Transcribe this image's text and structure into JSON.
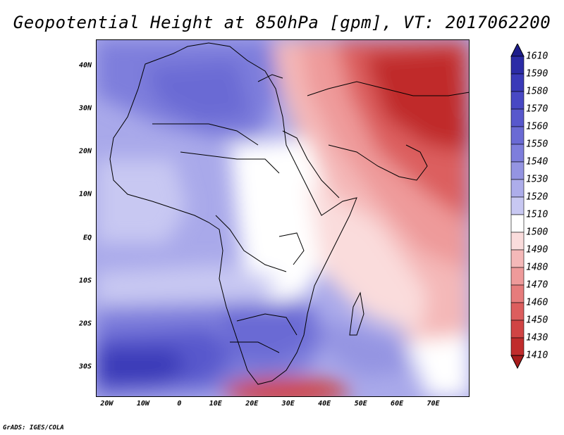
{
  "title": "Geopotential Height at 850hPa [gpm], VT: 2017062200",
  "credit": "GrADS: IGES/COLA",
  "map": {
    "lon_range": [
      -23,
      80
    ],
    "lat_range": [
      -37,
      46
    ],
    "lat_labels": [
      {
        "lat": 40,
        "text": "40N"
      },
      {
        "lat": 30,
        "text": "30N"
      },
      {
        "lat": 20,
        "text": "20N"
      },
      {
        "lat": 10,
        "text": "10N"
      },
      {
        "lat": 0,
        "text": "EQ"
      },
      {
        "lat": -10,
        "text": "10S"
      },
      {
        "lat": -20,
        "text": "20S"
      },
      {
        "lat": -30,
        "text": "30S"
      }
    ],
    "lon_labels": [
      {
        "lon": -20,
        "text": "20W"
      },
      {
        "lon": -10,
        "text": "10W"
      },
      {
        "lon": 0,
        "text": "0"
      },
      {
        "lon": 10,
        "text": "10E"
      },
      {
        "lon": 20,
        "text": "20E"
      },
      {
        "lon": 30,
        "text": "30E"
      },
      {
        "lon": 40,
        "text": "40E"
      },
      {
        "lon": 50,
        "text": "50E"
      },
      {
        "lon": 60,
        "text": "60E"
      },
      {
        "lon": 70,
        "text": "70E"
      }
    ]
  },
  "colorbar": {
    "labels": [
      "1610",
      "1590",
      "1580",
      "1570",
      "1560",
      "1550",
      "1540",
      "1530",
      "1520",
      "1510",
      "1500",
      "1490",
      "1480",
      "1470",
      "1460",
      "1450",
      "1430",
      "1410"
    ],
    "colors": [
      "#1e1e8c",
      "#2c2ca6",
      "#3a3ab8",
      "#4848c4",
      "#5858cc",
      "#6a6ad4",
      "#7e7edc",
      "#9494e2",
      "#adadea",
      "#c8c8f2",
      "#ffffff",
      "#fadcdc",
      "#f4b8b8",
      "#ee9a9a",
      "#e67c7c",
      "#dc5e5e",
      "#d04444",
      "#c02c2c",
      "#a81c1c"
    ]
  }
}
